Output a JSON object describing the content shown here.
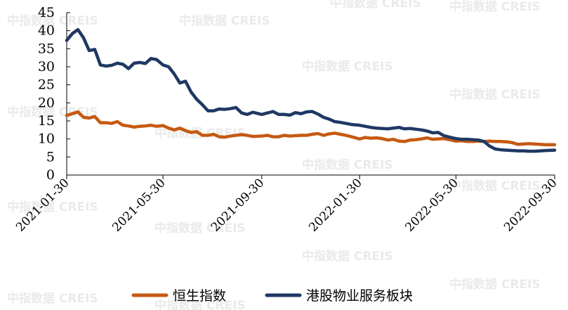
{
  "chart_data": {
    "type": "line",
    "title": "",
    "xlabel": "",
    "ylabel": "",
    "ylim": [
      0,
      45
    ],
    "yticks": [
      0,
      5,
      10,
      15,
      20,
      25,
      30,
      35,
      40,
      45
    ],
    "x_ticks": [
      "2021-01-30",
      "2021-05-30",
      "2021-09-30",
      "2022-01-30",
      "2022-05-30",
      "2022-09-30"
    ],
    "grid": false,
    "legend_position": "bottom",
    "x": [
      "2021-01-30",
      "2021-02-06",
      "2021-02-13",
      "2021-02-20",
      "2021-02-27",
      "2021-03-06",
      "2021-03-13",
      "2021-03-20",
      "2021-03-27",
      "2021-04-03",
      "2021-04-10",
      "2021-04-17",
      "2021-04-24",
      "2021-05-01",
      "2021-05-08",
      "2021-05-15",
      "2021-05-22",
      "2021-05-30",
      "2021-06-06",
      "2021-06-13",
      "2021-06-20",
      "2021-06-27",
      "2021-07-04",
      "2021-07-11",
      "2021-07-18",
      "2021-07-25",
      "2021-08-01",
      "2021-08-08",
      "2021-08-15",
      "2021-08-22",
      "2021-08-29",
      "2021-09-05",
      "2021-09-12",
      "2021-09-19",
      "2021-09-30",
      "2021-10-07",
      "2021-10-14",
      "2021-10-21",
      "2021-10-28",
      "2021-11-04",
      "2021-11-11",
      "2021-11-18",
      "2021-11-25",
      "2021-12-02",
      "2021-12-09",
      "2021-12-16",
      "2021-12-23",
      "2021-12-30",
      "2022-01-06",
      "2022-01-13",
      "2022-01-20",
      "2022-01-30",
      "2022-02-06",
      "2022-02-13",
      "2022-02-20",
      "2022-02-27",
      "2022-03-06",
      "2022-03-13",
      "2022-03-20",
      "2022-03-27",
      "2022-04-03",
      "2022-04-10",
      "2022-04-17",
      "2022-04-24",
      "2022-05-01",
      "2022-05-08",
      "2022-05-15",
      "2022-05-22",
      "2022-05-30",
      "2022-06-06",
      "2022-06-13",
      "2022-06-20",
      "2022-06-27",
      "2022-07-04",
      "2022-07-11",
      "2022-07-18",
      "2022-07-25",
      "2022-08-01",
      "2022-08-08",
      "2022-08-15",
      "2022-08-22",
      "2022-08-29",
      "2022-09-05",
      "2022-09-12",
      "2022-09-19",
      "2022-09-30"
    ],
    "series": [
      {
        "name": "恒生指数",
        "color": "#c55a11",
        "values": [
          16.5,
          17.0,
          17.5,
          16.0,
          15.8,
          16.2,
          14.5,
          14.5,
          14.3,
          14.8,
          13.8,
          13.6,
          13.3,
          13.5,
          13.6,
          13.8,
          13.5,
          13.7,
          13.0,
          12.5,
          13.0,
          12.3,
          11.8,
          12.0,
          11.0,
          11.0,
          11.3,
          10.6,
          10.5,
          10.8,
          11.0,
          11.2,
          11.0,
          10.7,
          10.8,
          11.0,
          10.6,
          10.6,
          11.0,
          10.8,
          10.9,
          11.0,
          11.0,
          11.3,
          11.5,
          11.0,
          11.4,
          11.6,
          11.3,
          11.0,
          10.6,
          10.0,
          10.4,
          10.2,
          10.3,
          10.1,
          9.7,
          9.9,
          9.4,
          9.3,
          9.7,
          9.8,
          10.0,
          10.3,
          9.9,
          10.0,
          10.1,
          9.8,
          9.4,
          9.5,
          9.3,
          9.3,
          9.4,
          9.3,
          9.4,
          9.3,
          9.3,
          9.2,
          9.0,
          8.5,
          8.6,
          8.7,
          8.6,
          8.5,
          8.4,
          8.4
        ]
      },
      {
        "name": "港股物业服务板块",
        "color": "#1f3864",
        "values": [
          37.3,
          39.2,
          40.3,
          38.0,
          34.5,
          34.8,
          30.5,
          30.2,
          30.4,
          31.0,
          30.7,
          29.5,
          31.0,
          31.2,
          30.9,
          32.3,
          32.0,
          30.5,
          30.0,
          28.0,
          25.5,
          26.0,
          23.0,
          21.0,
          19.5,
          17.8,
          17.8,
          18.3,
          18.2,
          18.4,
          18.7,
          17.2,
          16.8,
          17.4,
          16.8,
          17.2,
          17.6,
          16.8,
          16.8,
          16.6,
          17.3,
          17.0,
          17.5,
          17.6,
          16.9,
          16.0,
          15.5,
          14.8,
          14.6,
          14.3,
          14.0,
          13.8,
          13.5,
          13.2,
          13.0,
          12.9,
          12.8,
          13.0,
          13.2,
          12.8,
          12.9,
          12.7,
          12.5,
          12.2,
          11.7,
          11.8,
          10.9,
          10.5,
          10.1,
          9.9,
          9.9,
          9.8,
          9.7,
          9.3,
          8.0,
          7.2,
          7.0,
          6.9,
          6.8,
          6.7,
          6.7,
          6.6,
          6.6,
          6.7,
          6.8,
          6.9
        ]
      }
    ]
  },
  "watermark": {
    "text": "中指数据 CREIS"
  }
}
